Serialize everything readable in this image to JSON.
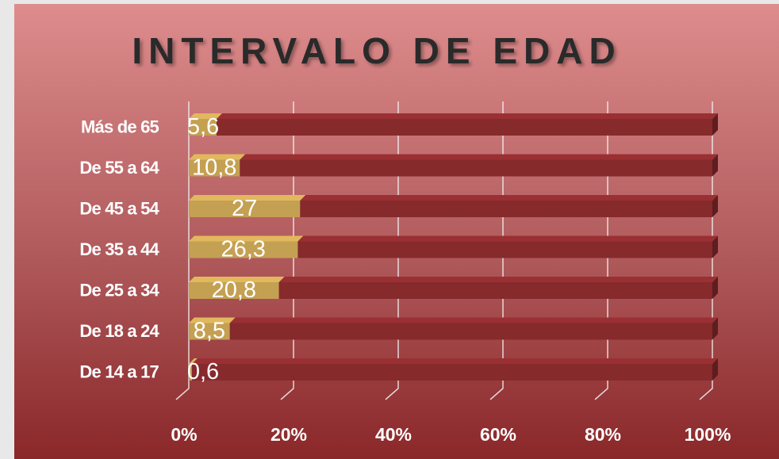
{
  "chart_data": {
    "type": "bar",
    "orientation": "horizontal",
    "stacking": "percent",
    "title": "INTERVALO DE EDAD",
    "categories": [
      "Más de 65",
      "De 55 a 64",
      "De 45 a 54",
      "De 35 a 44",
      "De 25 a 34",
      "De 18 a 24",
      "De 14 a 17"
    ],
    "series": [
      {
        "color": "#c4a052",
        "values": [
          5.6,
          10.8,
          27,
          26.3,
          20.8,
          8.5,
          0.6
        ],
        "value_labels": [
          "5,6",
          "10,8",
          "27",
          "26,3",
          "20,8",
          "8,5",
          "0,6"
        ]
      },
      {
        "color": "#862a2c",
        "values": [
          100,
          100,
          100,
          100,
          100,
          100,
          100
        ]
      }
    ],
    "xlim": [
      0,
      100
    ],
    "xticks": [
      {
        "value": 0,
        "label": "0%"
      },
      {
        "value": 20,
        "label": "20%"
      },
      {
        "value": 40,
        "label": "40%"
      },
      {
        "value": 60,
        "label": "60%"
      },
      {
        "value": 80,
        "label": "80%"
      },
      {
        "value": 100,
        "label": "100%"
      }
    ],
    "grid": true
  }
}
